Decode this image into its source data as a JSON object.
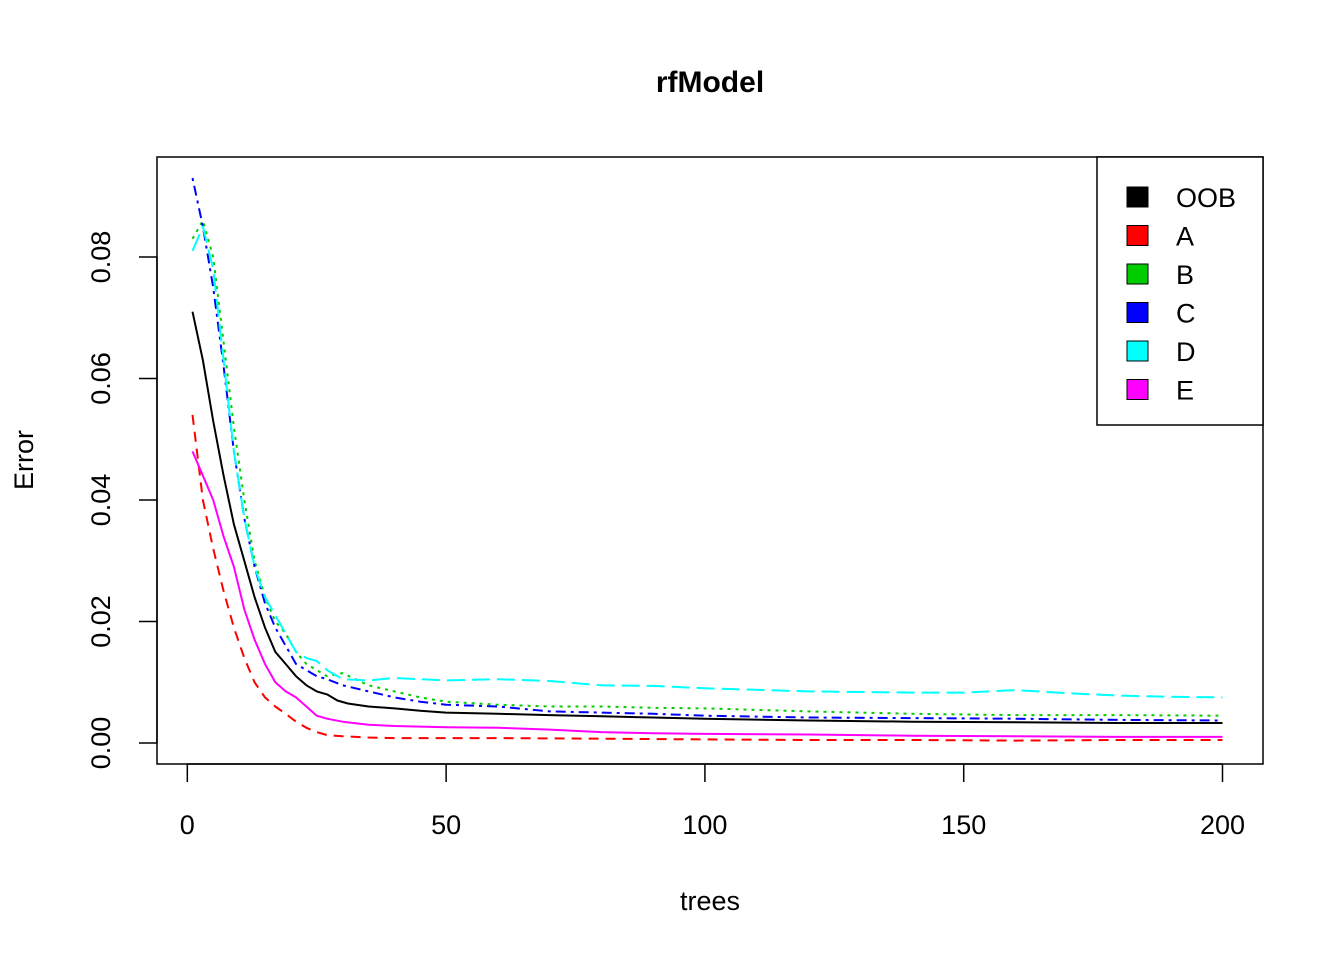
{
  "chart_data": {
    "type": "line",
    "title": "rfModel",
    "xlabel": "trees",
    "ylabel": "Error",
    "xlim": [
      1,
      200
    ],
    "ylim": [
      0,
      0.095
    ],
    "x_ticks": [
      0,
      50,
      100,
      150,
      200
    ],
    "x_tick_labels": [
      "0",
      "50",
      "100",
      "150",
      "200"
    ],
    "y_ticks": [
      0,
      0.02,
      0.04,
      0.06,
      0.08
    ],
    "y_tick_labels": [
      "0.00",
      "0.02",
      "0.04",
      "0.06",
      "0.08"
    ],
    "grid": false,
    "legend_position": "top-right",
    "series": [
      {
        "name": "OOB",
        "color": "#000000",
        "dash": "solid",
        "points": [
          [
            1,
            0.071
          ],
          [
            3,
            0.063
          ],
          [
            5,
            0.053
          ],
          [
            7,
            0.044
          ],
          [
            9,
            0.036
          ],
          [
            11,
            0.03
          ],
          [
            13,
            0.024
          ],
          [
            15,
            0.019
          ],
          [
            17,
            0.015
          ],
          [
            19,
            0.013
          ],
          [
            21,
            0.011
          ],
          [
            23,
            0.0095
          ],
          [
            25,
            0.0085
          ],
          [
            27,
            0.008
          ],
          [
            29,
            0.007
          ],
          [
            31,
            0.0065
          ],
          [
            35,
            0.006
          ],
          [
            40,
            0.0057
          ],
          [
            45,
            0.0053
          ],
          [
            50,
            0.005
          ],
          [
            60,
            0.0048
          ],
          [
            70,
            0.0046
          ],
          [
            80,
            0.0044
          ],
          [
            90,
            0.0042
          ],
          [
            100,
            0.004
          ],
          [
            120,
            0.0037
          ],
          [
            140,
            0.0035
          ],
          [
            160,
            0.0034
          ],
          [
            180,
            0.0033
          ],
          [
            200,
            0.0033
          ]
        ]
      },
      {
        "name": "A",
        "color": "#ff0000",
        "dash": "dashed",
        "points": [
          [
            1,
            0.054
          ],
          [
            3,
            0.04
          ],
          [
            5,
            0.032
          ],
          [
            7,
            0.025
          ],
          [
            9,
            0.019
          ],
          [
            11,
            0.014
          ],
          [
            13,
            0.01
          ],
          [
            15,
            0.0075
          ],
          [
            17,
            0.006
          ],
          [
            19,
            0.0048
          ],
          [
            21,
            0.0035
          ],
          [
            23,
            0.0025
          ],
          [
            25,
            0.0018
          ],
          [
            27,
            0.0013
          ],
          [
            30,
            0.0011
          ],
          [
            35,
            0.0009
          ],
          [
            40,
            0.0008
          ],
          [
            50,
            0.0008
          ],
          [
            60,
            0.0008
          ],
          [
            80,
            0.0007
          ],
          [
            100,
            0.0006
          ],
          [
            120,
            0.0005
          ],
          [
            140,
            0.0005
          ],
          [
            160,
            0.0004
          ],
          [
            180,
            0.0005
          ],
          [
            200,
            0.0005
          ]
        ]
      },
      {
        "name": "B",
        "color": "#00cd00",
        "dash": "dotted",
        "points": [
          [
            1,
            0.083
          ],
          [
            3,
            0.086
          ],
          [
            5,
            0.08
          ],
          [
            7,
            0.066
          ],
          [
            9,
            0.052
          ],
          [
            11,
            0.04
          ],
          [
            13,
            0.03
          ],
          [
            15,
            0.024
          ],
          [
            17,
            0.02
          ],
          [
            19,
            0.018
          ],
          [
            21,
            0.015
          ],
          [
            23,
            0.013
          ],
          [
            25,
            0.012
          ],
          [
            27,
            0.011
          ],
          [
            30,
            0.0115
          ],
          [
            35,
            0.0095
          ],
          [
            40,
            0.0085
          ],
          [
            45,
            0.0075
          ],
          [
            50,
            0.0068
          ],
          [
            60,
            0.0063
          ],
          [
            70,
            0.006
          ],
          [
            80,
            0.006
          ],
          [
            90,
            0.0058
          ],
          [
            100,
            0.0057
          ],
          [
            120,
            0.0052
          ],
          [
            140,
            0.0048
          ],
          [
            160,
            0.0046
          ],
          [
            180,
            0.0046
          ],
          [
            200,
            0.0045
          ]
        ]
      },
      {
        "name": "C",
        "color": "#0000ff",
        "dash": "dashdot",
        "points": [
          [
            1,
            0.093
          ],
          [
            3,
            0.085
          ],
          [
            5,
            0.075
          ],
          [
            7,
            0.062
          ],
          [
            9,
            0.048
          ],
          [
            11,
            0.037
          ],
          [
            13,
            0.029
          ],
          [
            15,
            0.023
          ],
          [
            17,
            0.019
          ],
          [
            19,
            0.016
          ],
          [
            21,
            0.013
          ],
          [
            23,
            0.012
          ],
          [
            25,
            0.011
          ],
          [
            27,
            0.0105
          ],
          [
            30,
            0.0095
          ],
          [
            35,
            0.0085
          ],
          [
            40,
            0.0075
          ],
          [
            45,
            0.0068
          ],
          [
            50,
            0.0063
          ],
          [
            60,
            0.006
          ],
          [
            70,
            0.0052
          ],
          [
            80,
            0.005
          ],
          [
            90,
            0.0048
          ],
          [
            100,
            0.0045
          ],
          [
            120,
            0.0042
          ],
          [
            140,
            0.0041
          ],
          [
            160,
            0.004
          ],
          [
            180,
            0.0038
          ],
          [
            200,
            0.0037
          ]
        ]
      },
      {
        "name": "D",
        "color": "#00ffff",
        "dash": "longdash",
        "points": [
          [
            1,
            0.081
          ],
          [
            3,
            0.085
          ],
          [
            5,
            0.078
          ],
          [
            7,
            0.063
          ],
          [
            9,
            0.048
          ],
          [
            11,
            0.037
          ],
          [
            13,
            0.029
          ],
          [
            15,
            0.024
          ],
          [
            17,
            0.021
          ],
          [
            19,
            0.018
          ],
          [
            21,
            0.015
          ],
          [
            23,
            0.014
          ],
          [
            25,
            0.0135
          ],
          [
            27,
            0.012
          ],
          [
            30,
            0.0105
          ],
          [
            35,
            0.0103
          ],
          [
            40,
            0.0107
          ],
          [
            45,
            0.0105
          ],
          [
            50,
            0.0103
          ],
          [
            60,
            0.0105
          ],
          [
            70,
            0.0102
          ],
          [
            80,
            0.0095
          ],
          [
            90,
            0.0094
          ],
          [
            100,
            0.009
          ],
          [
            120,
            0.0085
          ],
          [
            140,
            0.0083
          ],
          [
            150,
            0.0083
          ],
          [
            160,
            0.0087
          ],
          [
            170,
            0.0082
          ],
          [
            180,
            0.0078
          ],
          [
            190,
            0.0076
          ],
          [
            200,
            0.0075
          ]
        ]
      },
      {
        "name": "E",
        "color": "#ff00ff",
        "dash": "solid",
        "points": [
          [
            1,
            0.048
          ],
          [
            3,
            0.044
          ],
          [
            5,
            0.04
          ],
          [
            7,
            0.034
          ],
          [
            9,
            0.029
          ],
          [
            11,
            0.022
          ],
          [
            13,
            0.017
          ],
          [
            15,
            0.013
          ],
          [
            17,
            0.01
          ],
          [
            19,
            0.0085
          ],
          [
            21,
            0.0075
          ],
          [
            23,
            0.006
          ],
          [
            25,
            0.0045
          ],
          [
            27,
            0.004
          ],
          [
            30,
            0.0035
          ],
          [
            35,
            0.003
          ],
          [
            40,
            0.0028
          ],
          [
            45,
            0.0027
          ],
          [
            50,
            0.0026
          ],
          [
            60,
            0.0025
          ],
          [
            70,
            0.0022
          ],
          [
            80,
            0.0018
          ],
          [
            90,
            0.0016
          ],
          [
            100,
            0.0015
          ],
          [
            120,
            0.0014
          ],
          [
            140,
            0.0012
          ],
          [
            160,
            0.0011
          ],
          [
            180,
            0.001
          ],
          [
            200,
            0.001
          ]
        ]
      }
    ]
  }
}
